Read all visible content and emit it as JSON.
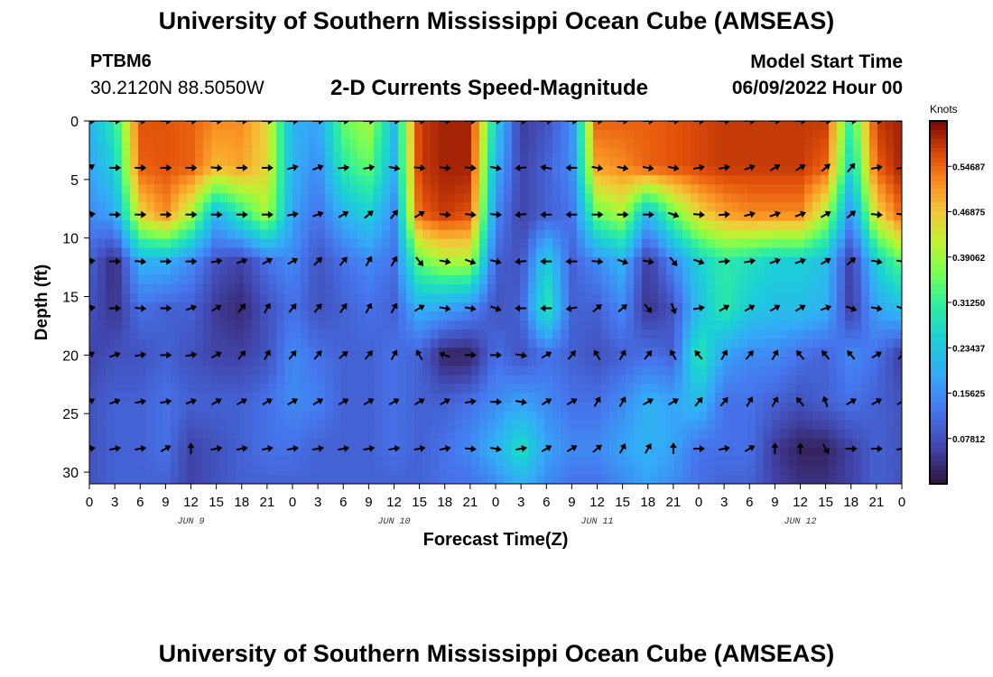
{
  "header": {
    "title": "University of Southern Mississippi Ocean Cube (AMSEAS)",
    "station_id": "PTBM6",
    "coordinates": "30.2120N  88.5050W",
    "subtitle": "2-D Currents Speed-Magnitude",
    "model_start_label": "Model Start Time",
    "model_start_value": "06/09/2022 Hour 00"
  },
  "footer": {
    "title": "University of Southern Mississippi Ocean Cube (AMSEAS)"
  },
  "chart_data": {
    "type": "heatmap",
    "title": "2-D Currents Speed-Magnitude",
    "xlabel": "Forecast Time(Z)",
    "ylabel": "Depth (ft)",
    "x_unit": "hours since model start",
    "xlim": [
      0,
      96
    ],
    "ylim": [
      31,
      0
    ],
    "x_ticks": [
      0,
      3,
      6,
      9,
      12,
      15,
      18,
      21,
      24,
      27,
      30,
      33,
      36,
      39,
      42,
      45,
      48,
      51,
      54,
      57,
      60,
      63,
      66,
      69,
      72,
      75,
      78,
      81,
      84,
      87,
      90,
      93,
      96
    ],
    "x_tick_labels": [
      "0",
      "3",
      "6",
      "9",
      "12",
      "15",
      "18",
      "21",
      "0",
      "3",
      "6",
      "9",
      "12",
      "15",
      "18",
      "21",
      "0",
      "3",
      "6",
      "9",
      "12",
      "15",
      "18",
      "21",
      "0",
      "3",
      "6",
      "9",
      "12",
      "15",
      "18",
      "21",
      "0"
    ],
    "day_labels": [
      {
        "hour": 12,
        "label": "JUN 9"
      },
      {
        "hour": 36,
        "label": "JUN 10"
      },
      {
        "hour": 60,
        "label": "JUN 11"
      },
      {
        "hour": 84,
        "label": "JUN 12"
      }
    ],
    "y_ticks": [
      0,
      5,
      10,
      15,
      20,
      25,
      30
    ],
    "colorbar": {
      "label": "Knots",
      "ticks": [
        0.54687,
        0.46875,
        0.39062,
        0.3125,
        0.23437,
        0.15625,
        0.07812
      ],
      "tick_labels": [
        "0.54687",
        "0.46875",
        "0.39062",
        "0.31250",
        "0.23437",
        "0.15625",
        "0.07812"
      ],
      "range": [
        0,
        0.625
      ]
    },
    "depth_rows": [
      0,
      4,
      8,
      12,
      16,
      20,
      24,
      28,
      31
    ],
    "time_cols": [
      0,
      3,
      6,
      9,
      12,
      15,
      18,
      21,
      24,
      27,
      30,
      33,
      36,
      39,
      42,
      45,
      48,
      51,
      54,
      57,
      60,
      63,
      66,
      69,
      72,
      75,
      78,
      81,
      84,
      87,
      90,
      93,
      96
    ],
    "speed_knots": [
      [
        0.2,
        0.3,
        0.56,
        0.56,
        0.55,
        0.52,
        0.52,
        0.45,
        0.2,
        0.18,
        0.35,
        0.4,
        0.22,
        0.58,
        0.6,
        0.6,
        0.25,
        0.05,
        0.08,
        0.15,
        0.55,
        0.55,
        0.55,
        0.56,
        0.57,
        0.58,
        0.58,
        0.58,
        0.58,
        0.58,
        0.3,
        0.58,
        0.6
      ],
      [
        0.18,
        0.25,
        0.55,
        0.56,
        0.55,
        0.48,
        0.5,
        0.45,
        0.2,
        0.15,
        0.3,
        0.35,
        0.2,
        0.58,
        0.6,
        0.6,
        0.2,
        0.06,
        0.1,
        0.15,
        0.5,
        0.52,
        0.55,
        0.56,
        0.57,
        0.58,
        0.58,
        0.58,
        0.58,
        0.55,
        0.25,
        0.55,
        0.6
      ],
      [
        0.15,
        0.18,
        0.45,
        0.52,
        0.4,
        0.2,
        0.3,
        0.4,
        0.18,
        0.12,
        0.2,
        0.25,
        0.15,
        0.55,
        0.58,
        0.56,
        0.15,
        0.06,
        0.1,
        0.12,
        0.35,
        0.4,
        0.2,
        0.35,
        0.45,
        0.5,
        0.52,
        0.52,
        0.52,
        0.4,
        0.15,
        0.45,
        0.55
      ],
      [
        0.1,
        0.03,
        0.2,
        0.2,
        0.15,
        0.08,
        0.06,
        0.12,
        0.15,
        0.08,
        0.12,
        0.15,
        0.12,
        0.35,
        0.4,
        0.4,
        0.1,
        0.08,
        0.25,
        0.1,
        0.15,
        0.2,
        0.05,
        0.15,
        0.25,
        0.3,
        0.28,
        0.25,
        0.25,
        0.22,
        0.05,
        0.25,
        0.35
      ],
      [
        0.08,
        0.04,
        0.12,
        0.1,
        0.1,
        0.05,
        0.03,
        0.08,
        0.12,
        0.08,
        0.1,
        0.12,
        0.1,
        0.2,
        0.18,
        0.15,
        0.08,
        0.1,
        0.3,
        0.1,
        0.1,
        0.15,
        0.04,
        0.08,
        0.22,
        0.3,
        0.24,
        0.22,
        0.22,
        0.2,
        0.05,
        0.18,
        0.22
      ],
      [
        0.06,
        0.08,
        0.08,
        0.1,
        0.08,
        0.06,
        0.06,
        0.08,
        0.15,
        0.12,
        0.1,
        0.1,
        0.12,
        0.1,
        0.02,
        0.02,
        0.12,
        0.08,
        0.12,
        0.1,
        0.08,
        0.1,
        0.12,
        0.1,
        0.3,
        0.18,
        0.15,
        0.15,
        0.12,
        0.1,
        0.15,
        0.12,
        0.05
      ],
      [
        0.08,
        0.1,
        0.1,
        0.12,
        0.1,
        0.1,
        0.1,
        0.12,
        0.15,
        0.14,
        0.1,
        0.1,
        0.12,
        0.1,
        0.1,
        0.12,
        0.15,
        0.18,
        0.15,
        0.12,
        0.12,
        0.15,
        0.2,
        0.18,
        0.22,
        0.12,
        0.12,
        0.1,
        0.08,
        0.1,
        0.12,
        0.1,
        0.08
      ],
      [
        0.08,
        0.1,
        0.1,
        0.12,
        0.06,
        0.08,
        0.1,
        0.12,
        0.12,
        0.1,
        0.1,
        0.1,
        0.12,
        0.1,
        0.12,
        0.15,
        0.2,
        0.28,
        0.18,
        0.15,
        0.15,
        0.18,
        0.2,
        0.18,
        0.12,
        0.12,
        0.12,
        0.05,
        0.02,
        0.02,
        0.06,
        0.1,
        0.08
      ],
      [
        0.08,
        0.1,
        0.1,
        0.1,
        0.06,
        0.08,
        0.1,
        0.1,
        0.1,
        0.1,
        0.1,
        0.1,
        0.1,
        0.1,
        0.12,
        0.12,
        0.15,
        0.2,
        0.15,
        0.12,
        0.12,
        0.15,
        0.18,
        0.15,
        0.12,
        0.1,
        0.1,
        0.06,
        0.04,
        0.04,
        0.06,
        0.1,
        0.08
      ]
    ],
    "vector_depths": [
      0,
      4,
      8,
      12,
      16,
      20,
      24,
      28
    ],
    "vector_times": [
      0,
      3,
      6,
      9,
      12,
      15,
      18,
      21,
      24,
      27,
      30,
      33,
      36,
      39,
      42,
      45,
      48,
      51,
      54,
      57,
      60,
      63,
      66,
      69,
      72,
      75,
      78,
      81,
      84,
      87,
      90,
      93,
      96
    ],
    "vector_direction_deg": [
      [
        90,
        90,
        90,
        90,
        90,
        90,
        90,
        90,
        90,
        90,
        90,
        90,
        90,
        90,
        90,
        90,
        90,
        90,
        90,
        90,
        90,
        90,
        90,
        90,
        90,
        90,
        90,
        90,
        90,
        90,
        90,
        90,
        90
      ],
      [
        60,
        90,
        90,
        90,
        90,
        95,
        90,
        90,
        75,
        70,
        85,
        80,
        100,
        95,
        95,
        95,
        100,
        265,
        280,
        270,
        100,
        100,
        100,
        100,
        80,
        80,
        70,
        60,
        60,
        50,
        40,
        80,
        80
      ],
      [
        80,
        90,
        90,
        90,
        90,
        90,
        90,
        90,
        80,
        70,
        60,
        50,
        40,
        60,
        95,
        95,
        95,
        265,
        270,
        270,
        90,
        90,
        90,
        110,
        95,
        85,
        75,
        70,
        70,
        60,
        50,
        95,
        100
      ],
      [
        80,
        90,
        95,
        90,
        90,
        80,
        70,
        60,
        60,
        45,
        40,
        30,
        30,
        140,
        100,
        110,
        105,
        265,
        270,
        270,
        95,
        110,
        100,
        140,
        110,
        85,
        80,
        70,
        70,
        60,
        50,
        100,
        100
      ],
      [
        80,
        90,
        95,
        90,
        70,
        60,
        40,
        30,
        40,
        40,
        35,
        30,
        30,
        60,
        100,
        100,
        110,
        270,
        270,
        260,
        50,
        50,
        140,
        160,
        80,
        60,
        60,
        60,
        60,
        70,
        110,
        100,
        110
      ],
      [
        60,
        70,
        80,
        90,
        80,
        60,
        40,
        30,
        40,
        40,
        50,
        40,
        30,
        330,
        290,
        90,
        90,
        100,
        60,
        40,
        330,
        30,
        40,
        330,
        320,
        30,
        40,
        30,
        320,
        320,
        320,
        60,
        40
      ],
      [
        60,
        70,
        80,
        80,
        70,
        60,
        60,
        60,
        60,
        60,
        60,
        60,
        60,
        60,
        60,
        80,
        90,
        100,
        60,
        60,
        30,
        30,
        60,
        60,
        40,
        40,
        30,
        30,
        320,
        340,
        60,
        60,
        60
      ],
      [
        80,
        80,
        80,
        60,
        0,
        80,
        80,
        80,
        80,
        80,
        80,
        80,
        80,
        80,
        80,
        95,
        100,
        80,
        60,
        60,
        50,
        30,
        30,
        0,
        90,
        80,
        60,
        0,
        0,
        150,
        90,
        90,
        80
      ]
    ]
  }
}
